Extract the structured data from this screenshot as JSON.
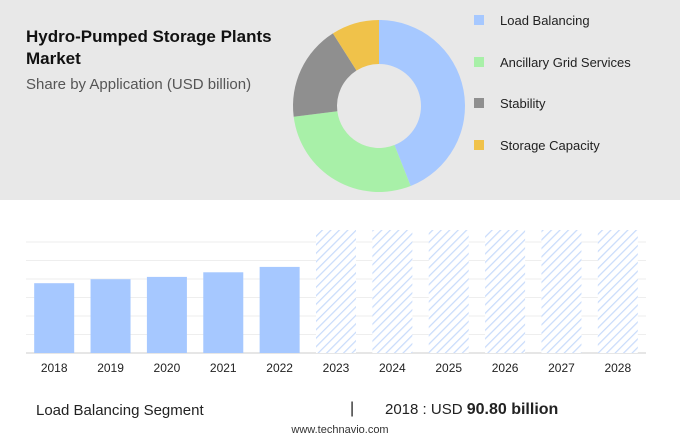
{
  "header": {
    "title": "Hydro-Pumped Storage Plants Market",
    "subtitle": "Share by Application (USD billion)"
  },
  "legend": [
    {
      "label": "Load Balancing",
      "color": "#a6c8ff"
    },
    {
      "label": "Ancillary Grid Services",
      "color": "#a8f0a8"
    },
    {
      "label": "Stability",
      "color": "#8f8f8f"
    },
    {
      "label": "Storage Capacity",
      "color": "#f0c24a"
    }
  ],
  "footer": {
    "segment": "Load Balancing Segment",
    "divider": "|",
    "year_prefix": "2018 : USD ",
    "value": "90.80 billion",
    "url": "www.technavio.com"
  },
  "chart_data": [
    {
      "type": "pie",
      "labels": [
        "Load Balancing",
        "Ancillary Grid Services",
        "Stability",
        "Storage Capacity"
      ],
      "values": [
        44,
        29,
        18,
        9
      ],
      "colors": [
        "#a6c8ff",
        "#a8f0a8",
        "#8f8f8f",
        "#f0c24a"
      ],
      "title": "",
      "donut": true
    },
    {
      "type": "bar",
      "categories": [
        "2018",
        "2019",
        "2020",
        "2021",
        "2022",
        "2023",
        "2024",
        "2025",
        "2026",
        "2027",
        "2028"
      ],
      "values": [
        90.8,
        96,
        99,
        105,
        112,
        null,
        null,
        null,
        null,
        null,
        null
      ],
      "forecast_categories": [
        "2023",
        "2024",
        "2025",
        "2026",
        "2027",
        "2028"
      ],
      "color": "#a6c8ff",
      "forecast_color": "#c9dcfb",
      "ylim": [
        0,
        160
      ],
      "grid": true,
      "title": "",
      "xlabel": "",
      "ylabel": ""
    }
  ]
}
